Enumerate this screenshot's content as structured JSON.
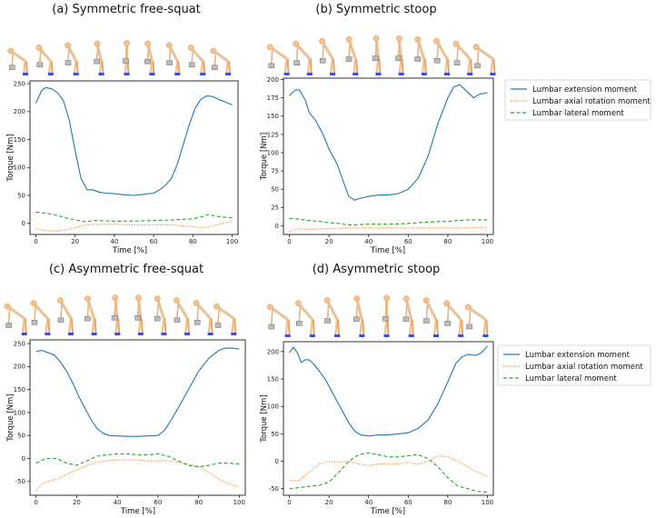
{
  "colors": {
    "extension": "#1f77b4",
    "axial": "#ff7f0e",
    "lateral": "#2ca02c",
    "skin": "#f4c28c",
    "feet": "#3a4fe0",
    "bone": "#c8c8c8"
  },
  "chart_data": [
    {
      "type": "line",
      "title": "(a) Symmetric free-squat",
      "xlabel": "Time [%]",
      "ylabel": "Torque [Nm]",
      "xlim": [
        -3,
        103
      ],
      "ylim": [
        -20,
        255
      ],
      "xticks": [
        0,
        20,
        40,
        60,
        80,
        100
      ],
      "yticks": [
        0,
        50,
        100,
        150,
        200,
        250
      ],
      "grid": false,
      "legend": "none",
      "series": [
        {
          "name": "Lumbar extension moment",
          "x": [
            0,
            3,
            5,
            8,
            11,
            14,
            17,
            20,
            23,
            26,
            29,
            32,
            35,
            40,
            45,
            50,
            55,
            60,
            63,
            66,
            69,
            72,
            75,
            78,
            81,
            84,
            87,
            90,
            93,
            96,
            100
          ],
          "values": [
            215,
            238,
            243,
            241,
            234,
            220,
            185,
            130,
            80,
            60,
            60,
            56,
            54,
            53,
            51,
            50,
            52,
            54,
            60,
            68,
            80,
            105,
            140,
            175,
            205,
            222,
            228,
            227,
            222,
            218,
            212
          ]
        },
        {
          "name": "Lumbar axial rotation moment",
          "x": [
            0,
            5,
            10,
            15,
            20,
            25,
            30,
            40,
            50,
            60,
            70,
            80,
            85,
            90,
            95,
            100
          ],
          "values": [
            -10,
            -13,
            -14,
            -12,
            -8,
            -3,
            -2,
            -2,
            -3,
            -3,
            -3,
            -6,
            -8,
            -5,
            0,
            3
          ]
        },
        {
          "name": "Lumbar lateral moment",
          "x": [
            0,
            5,
            10,
            15,
            20,
            25,
            30,
            40,
            50,
            60,
            70,
            80,
            85,
            88,
            90,
            95,
            100
          ],
          "values": [
            20,
            18,
            15,
            10,
            6,
            3,
            5,
            4,
            4,
            5,
            6,
            8,
            12,
            16,
            14,
            11,
            10
          ]
        }
      ]
    },
    {
      "type": "line",
      "title": "(b) Symmetric stoop",
      "xlabel": "Time [%]",
      "ylabel": "Torque [Nm]",
      "xlim": [
        -3,
        103
      ],
      "ylim": [
        -12,
        202
      ],
      "xticks": [
        0,
        20,
        40,
        60,
        80,
        100
      ],
      "yticks": [
        0,
        25,
        50,
        75,
        100,
        125,
        150,
        175,
        200
      ],
      "grid": false,
      "legend": "right",
      "series": [
        {
          "name": "Lumbar extension moment",
          "x": [
            0,
            3,
            5,
            8,
            10,
            13,
            17,
            20,
            24,
            27,
            30,
            33,
            35,
            40,
            45,
            50,
            55,
            60,
            65,
            70,
            75,
            80,
            83,
            86,
            90,
            93,
            96,
            100
          ],
          "values": [
            178,
            186,
            186,
            172,
            155,
            145,
            125,
            105,
            85,
            62,
            40,
            35,
            37,
            40,
            42,
            42,
            44,
            50,
            65,
            95,
            140,
            175,
            190,
            193,
            183,
            175,
            180,
            182
          ]
        },
        {
          "name": "Lumbar axial rotation moment",
          "x": [
            0,
            5,
            10,
            20,
            30,
            40,
            50,
            60,
            70,
            80,
            90,
            100
          ],
          "values": [
            -8,
            -4,
            -5,
            -4,
            -3,
            -3,
            -3,
            -3,
            -3,
            -3,
            -3,
            -2
          ]
        },
        {
          "name": "Lumbar lateral moment",
          "x": [
            0,
            5,
            10,
            15,
            20,
            25,
            30,
            40,
            50,
            60,
            70,
            80,
            90,
            100
          ],
          "values": [
            10,
            9,
            7,
            6,
            4,
            3,
            1,
            2,
            2,
            3,
            5,
            6,
            8,
            8
          ]
        }
      ]
    },
    {
      "type": "line",
      "title": "(c) Asymmetric free-squat",
      "xlabel": "Time [%]",
      "ylabel": "Torque [Nm]",
      "xlim": [
        -3,
        103
      ],
      "ylim": [
        -80,
        258
      ],
      "xticks": [
        0,
        20,
        40,
        60,
        80,
        100
      ],
      "yticks": [
        -50,
        0,
        50,
        100,
        150,
        200,
        250
      ],
      "grid": false,
      "legend": "none",
      "series": [
        {
          "name": "Lumbar extension moment",
          "x": [
            0,
            3,
            6,
            9,
            12,
            15,
            18,
            21,
            24,
            27,
            30,
            33,
            36,
            40,
            45,
            50,
            55,
            60,
            63,
            66,
            70,
            75,
            80,
            85,
            90,
            93,
            96,
            100
          ],
          "values": [
            233,
            235,
            230,
            225,
            210,
            190,
            165,
            135,
            110,
            85,
            65,
            55,
            50,
            49,
            48,
            48,
            49,
            50,
            60,
            80,
            110,
            150,
            190,
            218,
            235,
            240,
            240,
            238
          ]
        },
        {
          "name": "Lumbar axial rotation moment",
          "x": [
            0,
            3,
            6,
            10,
            15,
            20,
            25,
            30,
            35,
            40,
            45,
            50,
            55,
            60,
            65,
            70,
            75,
            80,
            85,
            90,
            95,
            100
          ],
          "values": [
            -70,
            -55,
            -50,
            -45,
            -35,
            -25,
            -15,
            -8,
            -5,
            -3,
            -3,
            -3,
            -5,
            -5,
            -5,
            -8,
            -12,
            -18,
            -30,
            -45,
            -55,
            -62
          ]
        },
        {
          "name": "Lumbar lateral moment",
          "x": [
            0,
            5,
            10,
            15,
            20,
            25,
            30,
            35,
            40,
            45,
            50,
            55,
            60,
            65,
            70,
            75,
            80,
            85,
            90,
            95,
            100
          ],
          "values": [
            -10,
            0,
            0,
            -10,
            -15,
            -5,
            5,
            8,
            10,
            10,
            8,
            8,
            10,
            5,
            -5,
            -15,
            -18,
            -15,
            -10,
            -10,
            -12
          ]
        }
      ]
    },
    {
      "type": "line",
      "title": "(d) Asymmetric stoop",
      "xlabel": "Time [%]",
      "ylabel": "Torque [Nm]",
      "xlim": [
        -3,
        103
      ],
      "ylim": [
        -62,
        218
      ],
      "xticks": [
        0,
        20,
        40,
        60,
        80,
        100
      ],
      "yticks": [
        -50,
        0,
        50,
        100,
        150,
        200
      ],
      "grid": false,
      "legend": "right",
      "series": [
        {
          "name": "Lumbar extension moment",
          "x": [
            0,
            2,
            4,
            6,
            8,
            10,
            12,
            15,
            18,
            21,
            24,
            27,
            30,
            33,
            36,
            40,
            45,
            50,
            55,
            60,
            65,
            70,
            75,
            80,
            84,
            87,
            90,
            94,
            97,
            100
          ],
          "values": [
            198,
            208,
            198,
            180,
            185,
            185,
            178,
            165,
            150,
            130,
            110,
            90,
            70,
            55,
            48,
            46,
            48,
            48,
            50,
            52,
            60,
            75,
            105,
            145,
            178,
            190,
            195,
            193,
            198,
            210
          ]
        },
        {
          "name": "Lumbar axial rotation moment",
          "x": [
            0,
            5,
            10,
            15,
            20,
            25,
            30,
            35,
            40,
            45,
            50,
            55,
            60,
            65,
            70,
            75,
            80,
            85,
            90,
            95,
            100
          ],
          "values": [
            -35,
            -35,
            -20,
            -5,
            0,
            -2,
            0,
            -5,
            -8,
            -5,
            -5,
            -5,
            -2,
            -5,
            0,
            10,
            8,
            0,
            -10,
            -20,
            -28
          ]
        },
        {
          "name": "Lumbar lateral moment",
          "x": [
            0,
            5,
            10,
            15,
            20,
            25,
            30,
            35,
            40,
            45,
            50,
            55,
            60,
            65,
            70,
            75,
            80,
            85,
            90,
            95,
            100
          ],
          "values": [
            -50,
            -48,
            -46,
            -44,
            -38,
            -20,
            0,
            12,
            15,
            12,
            8,
            8,
            10,
            12,
            5,
            -10,
            -30,
            -45,
            -50,
            -55,
            -56
          ]
        }
      ]
    }
  ]
}
